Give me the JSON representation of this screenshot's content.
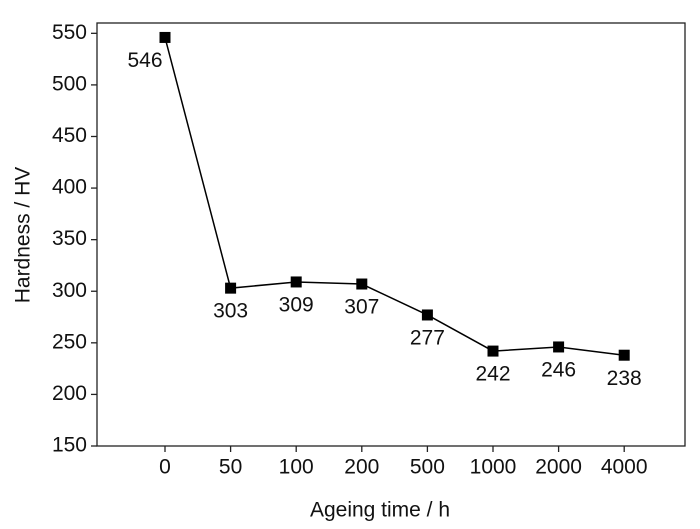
{
  "chart_data": {
    "type": "line",
    "xlabel": "Ageing time / h",
    "ylabel": "Hardness / HV",
    "categories": [
      "0",
      "50",
      "100",
      "200",
      "500",
      "1000",
      "2000",
      "4000"
    ],
    "series": [
      {
        "name": "Hardness",
        "color": "#000000",
        "values": [
          546,
          303,
          309,
          307,
          277,
          242,
          246,
          238
        ]
      }
    ],
    "ylim": [
      150,
      560
    ],
    "yticks": [
      150,
      200,
      250,
      300,
      350,
      400,
      450,
      500,
      550
    ],
    "marker": "square"
  }
}
